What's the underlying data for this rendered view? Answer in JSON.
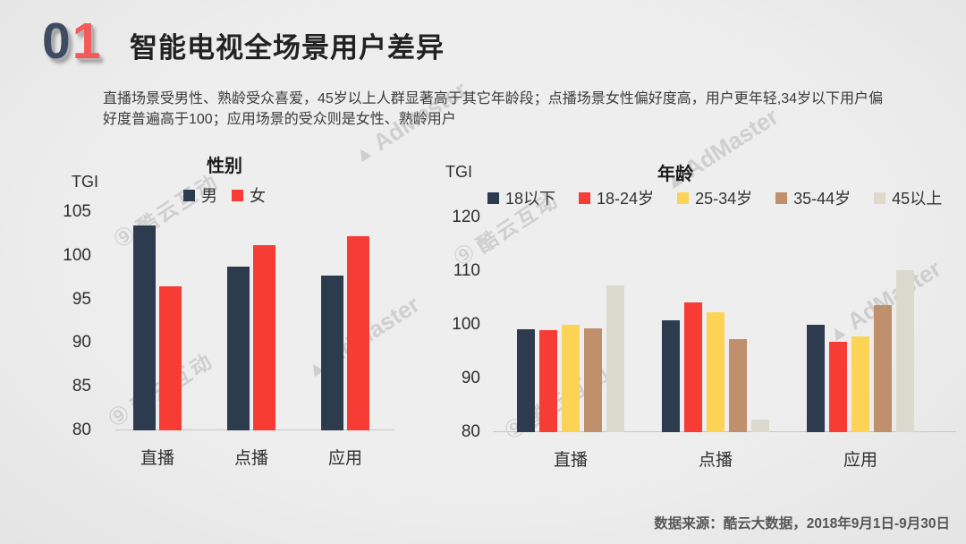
{
  "slide": {
    "section_number": {
      "digit_zero": "0",
      "digit_one": "1"
    },
    "title": "智能电视全场景用户差异",
    "subtitle": "直播场景受男性、熟龄受众喜爱，45岁以上人群显著高于其它年龄段；点播场景女性偏好度高，用户更年轻,34岁以下用户偏好度普遍高于100；应用场景的受众则是女性、熟龄用户",
    "footer": "数据来源：酷云大数据，2018年9月1日-9月30日"
  },
  "watermarks": {
    "admaster": "AdMaster",
    "kuyun": "酷云互动"
  },
  "colors": {
    "background": "#ebebeb",
    "navy": "#2d3b4e",
    "red": "#f73b35",
    "yellow": "#fdd355",
    "brown": "#c08f6b",
    "beige": "#dcd9cf",
    "digit_zero": "#3e4c62",
    "digit_one": "#f4595a",
    "axis_line": "#c7c7c7"
  },
  "chart_data": [
    {
      "type": "bar",
      "title": "性别",
      "ylabel": "TGI",
      "categories": [
        "直播",
        "点播",
        "应用"
      ],
      "series": [
        {
          "name": "男",
          "color": "#2d3b4e",
          "values": [
            103.5,
            98.8,
            97.7
          ]
        },
        {
          "name": "女",
          "color": "#f73b35",
          "values": [
            96.5,
            101.2,
            102.2
          ]
        }
      ],
      "ylim": [
        80,
        105
      ],
      "yticks": [
        105,
        100,
        95,
        90,
        85,
        80
      ],
      "grid": false,
      "legend_position": "top"
    },
    {
      "type": "bar",
      "title": "年龄",
      "ylabel": "TGI",
      "categories": [
        "直播",
        "点播",
        "应用"
      ],
      "series": [
        {
          "name": "18以下",
          "color": "#2d3b4e",
          "values": [
            99.2,
            100.9,
            100.0
          ]
        },
        {
          "name": "18-24岁",
          "color": "#f73b35",
          "values": [
            99.0,
            104.2,
            96.9
          ]
        },
        {
          "name": "25-34岁",
          "color": "#fdd355",
          "values": [
            100.0,
            102.4,
            97.9
          ]
        },
        {
          "name": "35-44岁",
          "color": "#c08f6b",
          "values": [
            99.4,
            97.4,
            103.6
          ]
        },
        {
          "name": "45以上",
          "color": "#dcd9cf",
          "values": [
            107.4,
            82.3,
            110.2
          ]
        }
      ],
      "ylim": [
        80,
        120
      ],
      "yticks": [
        120,
        110,
        100,
        90,
        80
      ],
      "grid": false,
      "legend_position": "top"
    }
  ]
}
